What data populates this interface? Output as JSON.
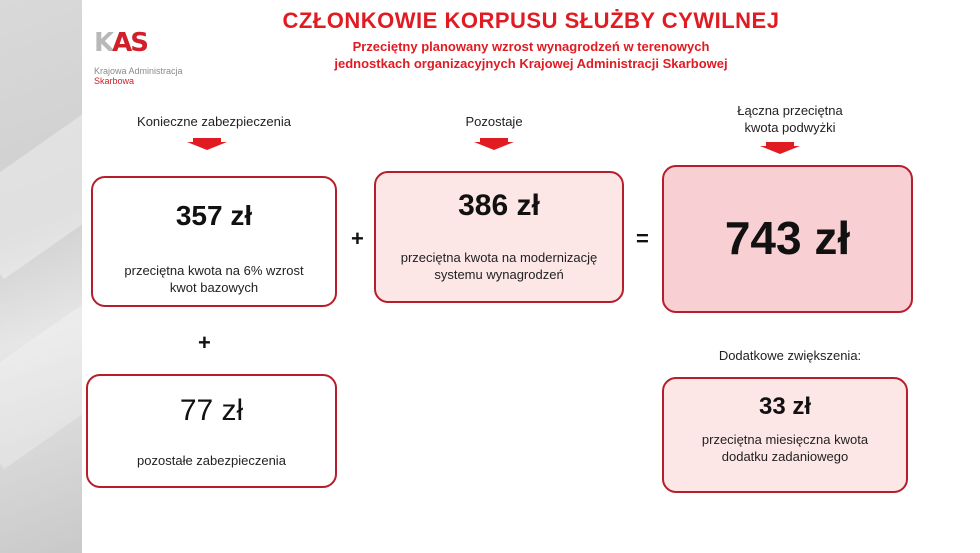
{
  "logo": {
    "mark_left": "K",
    "mark_right": "AS",
    "line1": "Krajowa Administracja",
    "line2": "Skarbowa"
  },
  "title": "CZŁONKOWIE KORPUSU  SŁUŻBY CYWILNEJ",
  "subtitle_line1": "Przeciętny planowany wzrost wynagrodzeń w terenowych",
  "subtitle_line2": "jednostkach organizacyjnych Krajowej Administracji Skarbowej",
  "columns": {
    "left_label": "Konieczne zabezpieczenia",
    "middle_label": "Pozostaje",
    "right_label_line1": "Łączna przeciętna",
    "right_label_line2": "kwota podwyżki"
  },
  "boxes": {
    "base": {
      "amount": "357 zł",
      "desc_line1": "przeciętna kwota na 6% wzrost",
      "desc_line2": "kwot bazowych"
    },
    "modernization": {
      "amount": "386 zł",
      "desc_line1": "przeciętna kwota na modernizację",
      "desc_line2": "systemu wynagrodzeń"
    },
    "total": {
      "amount": "743 zł"
    },
    "other": {
      "amount": "77 zł",
      "desc_line1": "pozostałe zabezpieczenia"
    },
    "task": {
      "amount": "33 zł",
      "desc_line1": "przeciętna miesięczna kwota",
      "desc_line2": "dodatku zadaniowego"
    }
  },
  "operators": {
    "plus1": "+",
    "equals": "=",
    "plus2": "+"
  },
  "extra_label": "Dodatkowe zwiększenia:",
  "colors": {
    "accent_red": "#e01b22",
    "border": "#b51e2a",
    "pink_light": "#fde6e6",
    "pink_dark": "#f8d0d4"
  }
}
